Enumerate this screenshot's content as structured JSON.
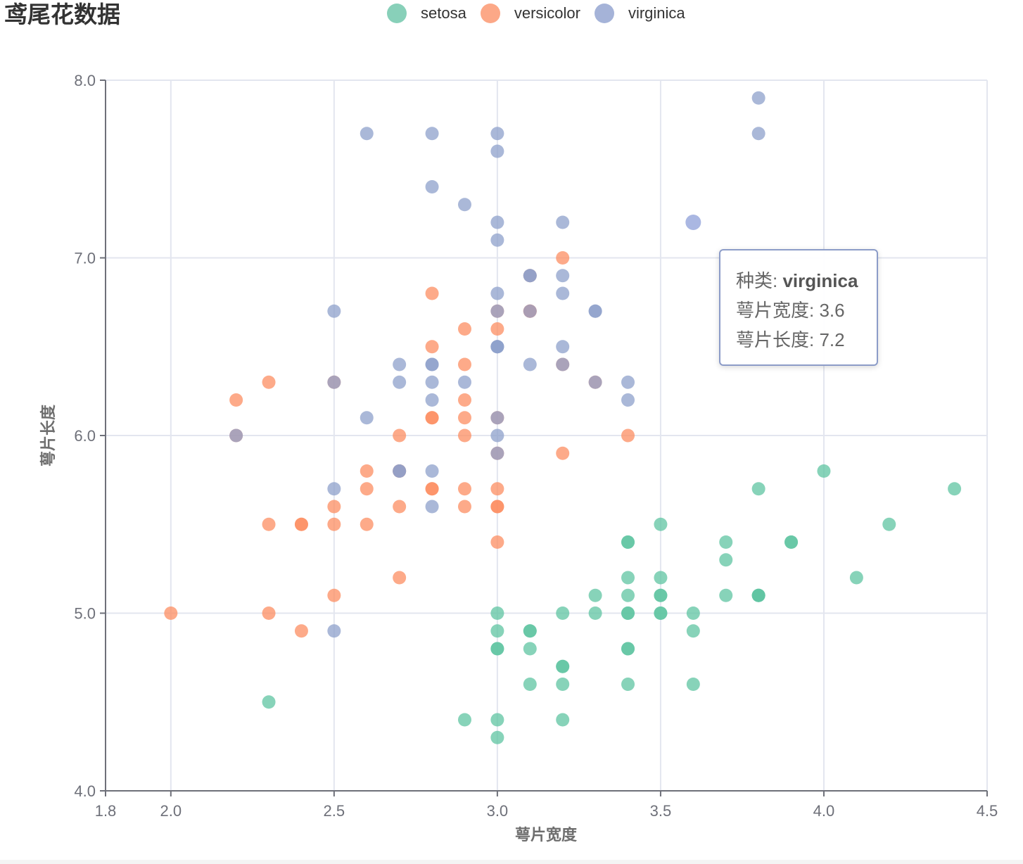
{
  "page": {
    "title": "鸢尾花数据"
  },
  "tooltip": {
    "species_label": "种类",
    "species_value": "virginica",
    "width_label": "萼片宽度",
    "width_value": "3.6",
    "length_label": "萼片长度",
    "length_value": "7.2"
  },
  "chart_data": {
    "type": "scatter",
    "title": "鸢尾花数据",
    "xlabel": "萼片宽度",
    "ylabel": "萼片长度",
    "xlim": [
      1.8,
      4.5
    ],
    "ylim": [
      4.0,
      8.0
    ],
    "xticks": [
      "1.8",
      "2.0",
      "2.5",
      "3.0",
      "3.5",
      "4.0",
      "4.5"
    ],
    "yticks": [
      "4.0",
      "5.0",
      "6.0",
      "7.0",
      "8.0"
    ],
    "legend_position": "top-center",
    "grid": true,
    "highlight": {
      "series": "virginica",
      "x": 3.6,
      "y": 7.2
    },
    "series": [
      {
        "name": "setosa",
        "color": "#5fc4a2",
        "points": [
          [
            3.5,
            5.1
          ],
          [
            3.0,
            4.9
          ],
          [
            3.2,
            4.7
          ],
          [
            3.1,
            4.6
          ],
          [
            3.6,
            5.0
          ],
          [
            3.9,
            5.4
          ],
          [
            3.4,
            4.6
          ],
          [
            3.4,
            5.0
          ],
          [
            2.9,
            4.4
          ],
          [
            3.1,
            4.9
          ],
          [
            3.7,
            5.4
          ],
          [
            3.4,
            4.8
          ],
          [
            3.0,
            4.8
          ],
          [
            3.0,
            4.3
          ],
          [
            4.0,
            5.8
          ],
          [
            4.4,
            5.7
          ],
          [
            3.9,
            5.4
          ],
          [
            3.5,
            5.1
          ],
          [
            3.8,
            5.7
          ],
          [
            3.8,
            5.1
          ],
          [
            3.4,
            5.4
          ],
          [
            3.7,
            5.1
          ],
          [
            3.6,
            4.6
          ],
          [
            3.3,
            5.1
          ],
          [
            3.4,
            4.8
          ],
          [
            3.0,
            5.0
          ],
          [
            3.4,
            5.0
          ],
          [
            3.5,
            5.2
          ],
          [
            3.4,
            5.2
          ],
          [
            3.2,
            4.7
          ],
          [
            3.1,
            4.8
          ],
          [
            3.4,
            5.4
          ],
          [
            4.1,
            5.2
          ],
          [
            4.2,
            5.5
          ],
          [
            3.1,
            4.9
          ],
          [
            3.2,
            5.0
          ],
          [
            3.5,
            5.5
          ],
          [
            3.6,
            4.9
          ],
          [
            3.0,
            4.4
          ],
          [
            3.4,
            5.1
          ],
          [
            3.5,
            5.0
          ],
          [
            2.3,
            4.5
          ],
          [
            3.2,
            4.4
          ],
          [
            3.5,
            5.0
          ],
          [
            3.8,
            5.1
          ],
          [
            3.0,
            4.8
          ],
          [
            3.8,
            5.1
          ],
          [
            3.2,
            4.6
          ],
          [
            3.7,
            5.3
          ],
          [
            3.3,
            5.0
          ]
        ]
      },
      {
        "name": "versicolor",
        "color": "#fc8d62",
        "points": [
          [
            3.2,
            7.0
          ],
          [
            3.2,
            6.4
          ],
          [
            3.1,
            6.9
          ],
          [
            2.3,
            5.5
          ],
          [
            2.8,
            6.5
          ],
          [
            2.8,
            5.7
          ],
          [
            3.3,
            6.3
          ],
          [
            2.4,
            4.9
          ],
          [
            2.9,
            6.6
          ],
          [
            2.7,
            5.2
          ],
          [
            2.0,
            5.0
          ],
          [
            3.0,
            5.9
          ],
          [
            2.2,
            6.0
          ],
          [
            2.9,
            6.1
          ],
          [
            2.9,
            5.6
          ],
          [
            3.1,
            6.7
          ],
          [
            3.0,
            5.6
          ],
          [
            2.7,
            5.8
          ],
          [
            2.2,
            6.2
          ],
          [
            2.5,
            5.6
          ],
          [
            3.2,
            5.9
          ],
          [
            2.8,
            6.1
          ],
          [
            2.5,
            6.3
          ],
          [
            2.8,
            6.1
          ],
          [
            2.9,
            6.4
          ],
          [
            3.0,
            6.6
          ],
          [
            2.8,
            6.8
          ],
          [
            3.0,
            6.7
          ],
          [
            2.9,
            6.0
          ],
          [
            2.6,
            5.7
          ],
          [
            2.4,
            5.5
          ],
          [
            2.4,
            5.5
          ],
          [
            2.7,
            5.8
          ],
          [
            2.7,
            6.0
          ],
          [
            3.0,
            5.4
          ],
          [
            3.4,
            6.0
          ],
          [
            3.1,
            6.7
          ],
          [
            2.3,
            6.3
          ],
          [
            3.0,
            5.6
          ],
          [
            2.5,
            5.5
          ],
          [
            2.6,
            5.5
          ],
          [
            3.0,
            6.1
          ],
          [
            2.6,
            5.8
          ],
          [
            2.3,
            5.0
          ],
          [
            2.7,
            5.6
          ],
          [
            3.0,
            5.7
          ],
          [
            2.9,
            5.7
          ],
          [
            2.9,
            6.2
          ],
          [
            2.5,
            5.1
          ],
          [
            2.8,
            5.7
          ]
        ]
      },
      {
        "name": "virginica",
        "color": "#8da0cb",
        "points": [
          [
            3.3,
            6.3
          ],
          [
            2.7,
            5.8
          ],
          [
            3.0,
            7.1
          ],
          [
            2.9,
            6.3
          ],
          [
            3.0,
            6.5
          ],
          [
            3.0,
            7.6
          ],
          [
            2.5,
            4.9
          ],
          [
            2.9,
            7.3
          ],
          [
            2.5,
            6.7
          ],
          [
            3.6,
            7.2
          ],
          [
            3.2,
            6.5
          ],
          [
            2.7,
            6.4
          ],
          [
            3.0,
            6.8
          ],
          [
            2.5,
            5.7
          ],
          [
            2.8,
            5.8
          ],
          [
            3.2,
            6.4
          ],
          [
            3.0,
            6.5
          ],
          [
            3.8,
            7.7
          ],
          [
            2.6,
            7.7
          ],
          [
            2.2,
            6.0
          ],
          [
            3.2,
            6.9
          ],
          [
            2.8,
            5.6
          ],
          [
            2.8,
            7.7
          ],
          [
            2.7,
            6.3
          ],
          [
            3.3,
            6.7
          ],
          [
            3.2,
            7.2
          ],
          [
            2.8,
            6.2
          ],
          [
            3.0,
            6.1
          ],
          [
            2.8,
            6.4
          ],
          [
            3.0,
            7.2
          ],
          [
            2.8,
            7.4
          ],
          [
            3.8,
            7.9
          ],
          [
            2.8,
            6.4
          ],
          [
            2.8,
            6.3
          ],
          [
            2.6,
            6.1
          ],
          [
            3.0,
            7.7
          ],
          [
            3.4,
            6.3
          ],
          [
            3.1,
            6.4
          ],
          [
            3.0,
            6.0
          ],
          [
            3.1,
            6.9
          ],
          [
            3.1,
            6.7
          ],
          [
            3.1,
            6.9
          ],
          [
            2.7,
            5.8
          ],
          [
            3.2,
            6.8
          ],
          [
            3.3,
            6.7
          ],
          [
            3.0,
            6.7
          ],
          [
            2.5,
            6.3
          ],
          [
            3.0,
            6.5
          ],
          [
            3.4,
            6.2
          ],
          [
            3.0,
            5.9
          ]
        ]
      }
    ]
  }
}
